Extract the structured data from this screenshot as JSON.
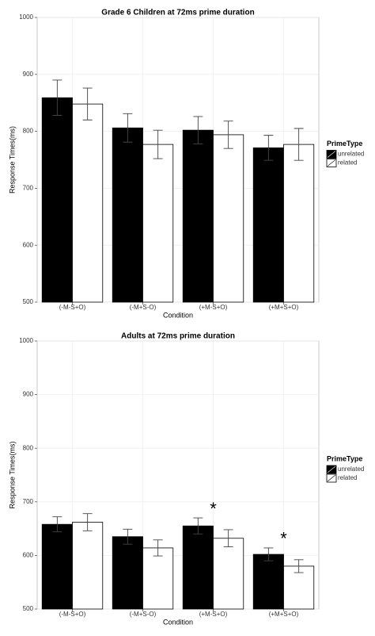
{
  "chart_data": [
    {
      "type": "bar",
      "title": "Grade 6 Children at 72ms prime duration",
      "x_label": "Condition",
      "y_label": "Response Times(ms)",
      "categories": [
        "(-M-S+O)",
        "(-M+S-O)",
        "(+M-S+O)",
        "(+M+S+O)"
      ],
      "series": [
        {
          "name": "unrelated",
          "color": "#000000",
          "values": [
            859,
            806,
            802,
            771
          ],
          "errors": [
            31,
            25,
            24,
            22
          ]
        },
        {
          "name": "related",
          "color": "#ffffff",
          "values": [
            848,
            777,
            794,
            777
          ],
          "errors": [
            28,
            25,
            24,
            28
          ]
        }
      ],
      "ylim": [
        500,
        1000
      ],
      "yticks": [
        500,
        600,
        700,
        800,
        900,
        1000
      ],
      "grid": true,
      "legend_title": "PrimeType",
      "legend": "right"
    },
    {
      "type": "bar",
      "title": "Adults at 72ms prime duration",
      "x_label": "Condition",
      "y_label": "Response Times(ms)",
      "categories": [
        "(-M-S+O)",
        "(-M+S-O)",
        "(+M-S+O)",
        "(+M+S+O)"
      ],
      "series": [
        {
          "name": "unrelated",
          "color": "#000000",
          "values": [
            658,
            635,
            655,
            602
          ],
          "errors": [
            14,
            14,
            15,
            12
          ]
        },
        {
          "name": "related",
          "color": "#ffffff",
          "values": [
            662,
            614,
            632,
            580
          ],
          "errors": [
            16,
            15,
            16,
            12
          ]
        }
      ],
      "significance": [
        null,
        null,
        "*",
        "*"
      ],
      "ylim": [
        500,
        1000
      ],
      "yticks": [
        500,
        600,
        700,
        800,
        900,
        1000
      ],
      "grid": true,
      "legend_title": "PrimeType",
      "legend": "right"
    }
  ]
}
